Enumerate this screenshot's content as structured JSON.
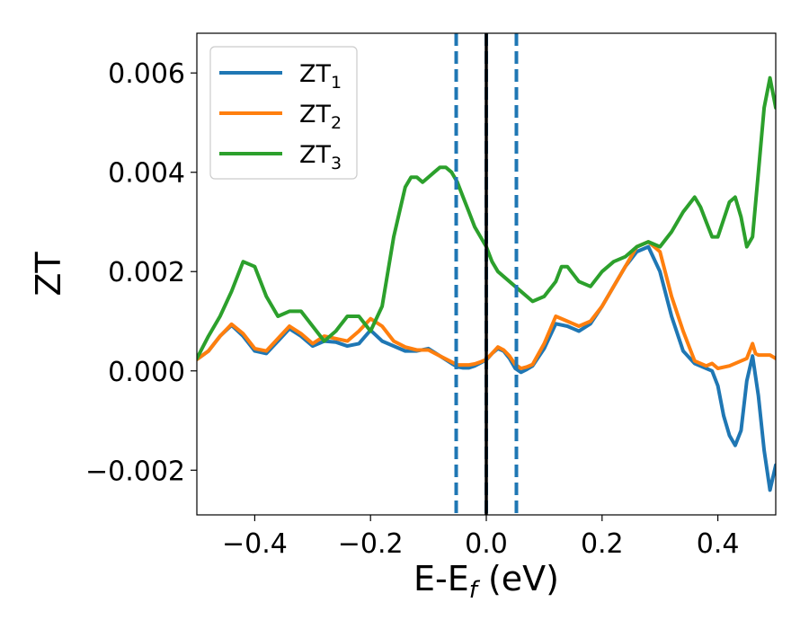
{
  "chart_data": {
    "type": "line",
    "xlabel": "E-E",
    "xlabel_sub": "f",
    "xlabel_unit": " (eV)",
    "ylabel": "ZT",
    "xlim": [
      -0.5,
      0.5
    ],
    "ylim": [
      -0.0029,
      0.0068
    ],
    "xticks": [
      -0.4,
      -0.2,
      0.0,
      0.2,
      0.4
    ],
    "xtick_labels": [
      "−0.4",
      "−0.2",
      "0.0",
      "0.2",
      "0.4"
    ],
    "yticks": [
      -0.002,
      0.0,
      0.002,
      0.004,
      0.006
    ],
    "ytick_labels": [
      "−0.002",
      "0.000",
      "0.002",
      "0.004",
      "0.006"
    ],
    "grid": false,
    "legend_position": "upper-left",
    "vlines": [
      {
        "x": -0.052,
        "style": "dashed",
        "color": "#1f77b4"
      },
      {
        "x": 0.0,
        "style": "dashed",
        "color": "#1f77b4"
      },
      {
        "x": 0.052,
        "style": "dashed",
        "color": "#1f77b4"
      },
      {
        "x": 0.0,
        "style": "solid",
        "color": "#000000"
      }
    ],
    "series": [
      {
        "name": "ZT",
        "sub": "1",
        "color": "#1f77b4",
        "x": [
          -0.5,
          -0.48,
          -0.46,
          -0.44,
          -0.42,
          -0.4,
          -0.38,
          -0.36,
          -0.34,
          -0.32,
          -0.3,
          -0.28,
          -0.26,
          -0.24,
          -0.22,
          -0.2,
          -0.18,
          -0.16,
          -0.14,
          -0.12,
          -0.1,
          -0.08,
          -0.06,
          -0.05,
          -0.04,
          -0.03,
          -0.02,
          -0.01,
          0.0,
          0.01,
          0.02,
          0.03,
          0.04,
          0.05,
          0.06,
          0.07,
          0.08,
          0.1,
          0.12,
          0.14,
          0.16,
          0.18,
          0.2,
          0.22,
          0.24,
          0.26,
          0.28,
          0.3,
          0.32,
          0.34,
          0.36,
          0.38,
          0.39,
          0.4,
          0.41,
          0.42,
          0.43,
          0.44,
          0.45,
          0.46,
          0.47,
          0.48,
          0.49,
          0.5
        ],
        "y": [
          0.00023,
          0.0004,
          0.0007,
          0.00092,
          0.0007,
          0.0004,
          0.00035,
          0.0006,
          0.00085,
          0.0007,
          0.0005,
          0.0006,
          0.00058,
          0.0005,
          0.00055,
          0.00082,
          0.0006,
          0.0005,
          0.0004,
          0.0004,
          0.00045,
          0.0003,
          0.00015,
          8e-05,
          6e-05,
          6e-05,
          0.0001,
          0.00016,
          0.00022,
          0.00035,
          0.00045,
          0.0004,
          0.00025,
          5e-05,
          -3e-05,
          3e-05,
          0.0001,
          0.00045,
          0.00095,
          0.0009,
          0.0008,
          0.00095,
          0.0013,
          0.0017,
          0.0021,
          0.0024,
          0.0025,
          0.002,
          0.0011,
          0.0004,
          0.00015,
          5e-05,
          0.0,
          -0.0003,
          -0.0009,
          -0.0013,
          -0.0015,
          -0.0012,
          -0.0002,
          0.0003,
          -0.0005,
          -0.0016,
          -0.0024,
          -0.0019
        ]
      },
      {
        "name": "ZT",
        "sub": "2",
        "color": "#ff7f0e",
        "x": [
          -0.5,
          -0.48,
          -0.46,
          -0.44,
          -0.42,
          -0.4,
          -0.38,
          -0.36,
          -0.34,
          -0.32,
          -0.3,
          -0.28,
          -0.26,
          -0.24,
          -0.22,
          -0.2,
          -0.18,
          -0.16,
          -0.14,
          -0.12,
          -0.1,
          -0.08,
          -0.06,
          -0.05,
          -0.04,
          -0.03,
          -0.02,
          -0.01,
          0.0,
          0.01,
          0.02,
          0.03,
          0.04,
          0.05,
          0.06,
          0.07,
          0.08,
          0.1,
          0.12,
          0.14,
          0.16,
          0.18,
          0.2,
          0.22,
          0.24,
          0.26,
          0.28,
          0.3,
          0.32,
          0.34,
          0.36,
          0.38,
          0.39,
          0.4,
          0.42,
          0.44,
          0.45,
          0.455,
          0.46,
          0.465,
          0.47,
          0.48,
          0.49,
          0.5
        ],
        "y": [
          0.00023,
          0.0004,
          0.0007,
          0.00094,
          0.00075,
          0.00045,
          0.0004,
          0.00065,
          0.0009,
          0.00075,
          0.00055,
          0.0007,
          0.00065,
          0.0006,
          0.0008,
          0.00105,
          0.0009,
          0.0006,
          0.00048,
          0.00042,
          0.00042,
          0.0003,
          0.00018,
          0.00012,
          0.00012,
          0.00012,
          0.00014,
          0.00018,
          0.00023,
          0.00035,
          0.00048,
          0.00042,
          0.0003,
          0.00013,
          5e-05,
          8e-05,
          0.00013,
          0.00055,
          0.0011,
          0.001,
          0.0009,
          0.001,
          0.0013,
          0.0017,
          0.0021,
          0.0025,
          0.0026,
          0.0024,
          0.0015,
          0.0008,
          0.0002,
          0.0001,
          0.00015,
          5e-05,
          0.0001,
          0.0002,
          0.00025,
          0.0004,
          0.00055,
          0.00035,
          0.00032,
          0.00032,
          0.00032,
          0.00025
        ]
      },
      {
        "name": "ZT",
        "sub": "3",
        "color": "#2ca02c",
        "x": [
          -0.5,
          -0.48,
          -0.46,
          -0.44,
          -0.42,
          -0.4,
          -0.38,
          -0.36,
          -0.34,
          -0.32,
          -0.3,
          -0.28,
          -0.26,
          -0.24,
          -0.22,
          -0.2,
          -0.18,
          -0.16,
          -0.14,
          -0.13,
          -0.12,
          -0.11,
          -0.1,
          -0.09,
          -0.08,
          -0.07,
          -0.06,
          -0.05,
          -0.04,
          -0.03,
          -0.02,
          -0.01,
          0.0,
          0.01,
          0.02,
          0.04,
          0.06,
          0.08,
          0.1,
          0.12,
          0.13,
          0.14,
          0.16,
          0.18,
          0.2,
          0.22,
          0.24,
          0.26,
          0.28,
          0.3,
          0.32,
          0.34,
          0.36,
          0.37,
          0.38,
          0.39,
          0.4,
          0.42,
          0.43,
          0.44,
          0.45,
          0.46,
          0.47,
          0.48,
          0.49,
          0.5
        ],
        "y": [
          0.00025,
          0.0007,
          0.0011,
          0.0016,
          0.0022,
          0.0021,
          0.0015,
          0.0011,
          0.0012,
          0.0012,
          0.0009,
          0.0006,
          0.0008,
          0.0011,
          0.0011,
          0.0008,
          0.0013,
          0.0027,
          0.0037,
          0.0039,
          0.0039,
          0.0038,
          0.0039,
          0.004,
          0.0041,
          0.0041,
          0.004,
          0.0038,
          0.0035,
          0.0032,
          0.0029,
          0.0027,
          0.0025,
          0.0022,
          0.002,
          0.0018,
          0.0016,
          0.0014,
          0.0015,
          0.0018,
          0.0021,
          0.0021,
          0.0018,
          0.0017,
          0.002,
          0.0022,
          0.0023,
          0.0025,
          0.0026,
          0.0025,
          0.0028,
          0.0032,
          0.0035,
          0.0033,
          0.003,
          0.0027,
          0.0027,
          0.0034,
          0.0035,
          0.0031,
          0.0025,
          0.0027,
          0.004,
          0.0053,
          0.0059,
          0.0053
        ]
      }
    ]
  }
}
